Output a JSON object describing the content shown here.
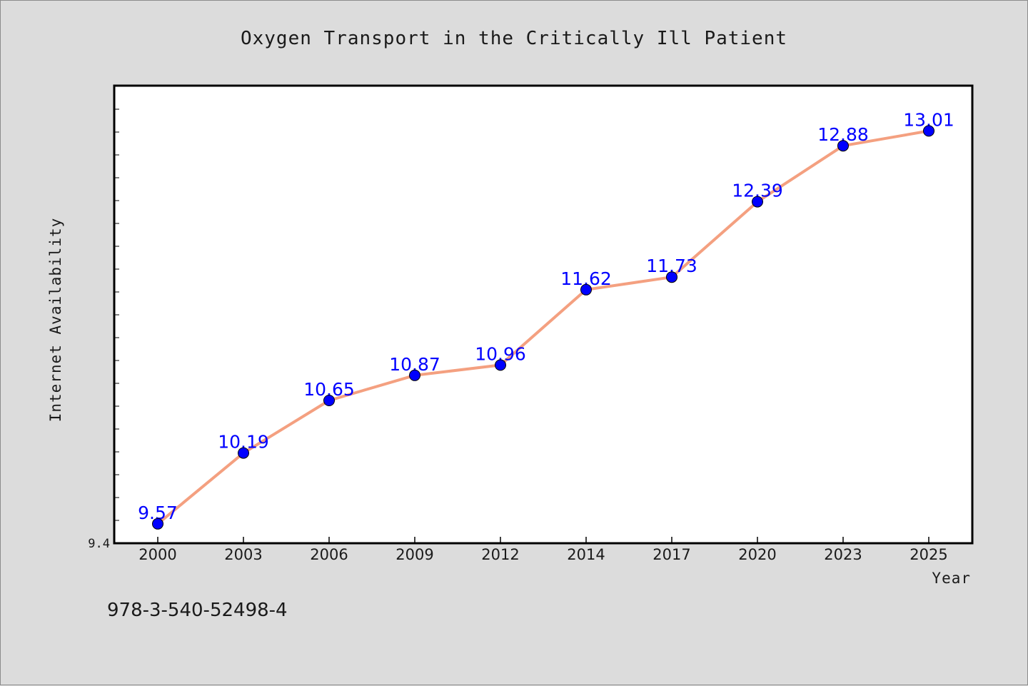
{
  "chart_data": {
    "type": "line",
    "title": "Oxygen Transport in the Critically Ill Patient",
    "xlabel": "Year",
    "ylabel": "Internet Availability",
    "categories": [
      "2000",
      "2003",
      "2006",
      "2009",
      "2012",
      "2014",
      "2017",
      "2020",
      "2023",
      "2025"
    ],
    "series": [
      {
        "values": [
          9.57,
          10.19,
          10.65,
          10.87,
          10.96,
          11.62,
          11.73,
          12.39,
          12.88,
          13.01
        ]
      }
    ],
    "data_labels": [
      "9.57",
      "10.19",
      "10.65",
      "10.87",
      "10.96",
      "11.62",
      "11.73",
      "12.39",
      "12.88",
      "13.01"
    ],
    "ylim": [
      9.4,
      13.4
    ],
    "yticks": [
      "9.4"
    ],
    "grid": false,
    "colors": {
      "line": "#f4a080",
      "marker": "#0000ff",
      "label": "#0000ff",
      "plot_bg": "#ffffff",
      "page_bg": "#dcdcdc"
    }
  },
  "caption": "978-3-540-52498-4"
}
